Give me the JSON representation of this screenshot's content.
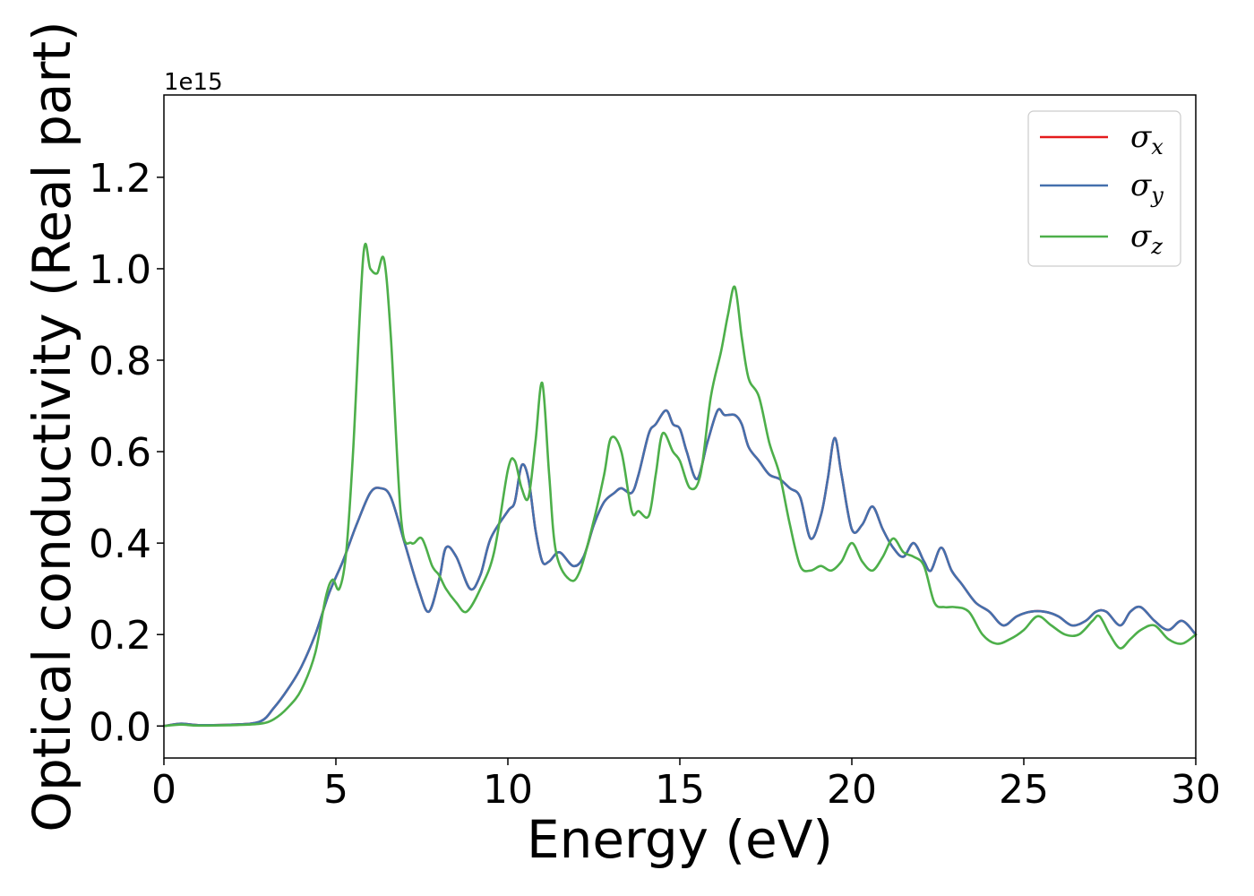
{
  "chart_data": {
    "type": "line",
    "title": "",
    "xlabel": "Energy (eV)",
    "ylabel": "Optical conductivity (Real part)",
    "y_offset_label": "1e15",
    "xlim": [
      0,
      30
    ],
    "ylim": [
      -0.07,
      1.38
    ],
    "x_ticks": [
      0,
      5,
      10,
      15,
      20,
      25,
      30
    ],
    "x_tick_labels": [
      "0",
      "5",
      "10",
      "15",
      "20",
      "25",
      "30"
    ],
    "y_ticks": [
      0.0,
      0.2,
      0.4,
      0.6,
      0.8,
      1.0,
      1.2
    ],
    "y_tick_labels": [
      "0.0",
      "0.2",
      "0.4",
      "0.6",
      "0.8",
      "1.0",
      "1.2"
    ],
    "grid": false,
    "legend_position": "top-right",
    "series": [
      {
        "name": "σx",
        "symbol": "σ",
        "subscript": "x",
        "color": "#e41a1c",
        "x": [
          0,
          0.5,
          1,
          2,
          2.8,
          3.2,
          3.6,
          4,
          4.4,
          4.8,
          5.2,
          5.6,
          6,
          6.3,
          6.6,
          7,
          7.4,
          7.7,
          8,
          8.2,
          8.5,
          8.9,
          9.2,
          9.5,
          10,
          10.2,
          10.4,
          10.6,
          10.8,
          11,
          11.2,
          11.5,
          11.9,
          12.2,
          12.5,
          12.8,
          13.1,
          13.3,
          13.6,
          13.8,
          14.1,
          14.3,
          14.6,
          14.8,
          15,
          15.2,
          15.5,
          15.8,
          16.1,
          16.3,
          16.6,
          16.8,
          17,
          17.3,
          17.6,
          17.9,
          18.2,
          18.5,
          18.8,
          19.1,
          19.3,
          19.5,
          19.7,
          20,
          20.3,
          20.6,
          20.9,
          21.2,
          21.5,
          21.8,
          22.1,
          22.3,
          22.6,
          22.9,
          23.2,
          23.6,
          24,
          24.4,
          24.8,
          25.2,
          25.6,
          26,
          26.4,
          26.8,
          27.1,
          27.4,
          27.8,
          28.1,
          28.4,
          28.8,
          29.2,
          29.6,
          30
        ],
        "y": [
          0,
          0.005,
          0.002,
          0.003,
          0.01,
          0.04,
          0.08,
          0.13,
          0.2,
          0.29,
          0.36,
          0.44,
          0.51,
          0.52,
          0.5,
          0.4,
          0.3,
          0.25,
          0.32,
          0.39,
          0.37,
          0.3,
          0.33,
          0.41,
          0.47,
          0.49,
          0.57,
          0.54,
          0.43,
          0.36,
          0.36,
          0.38,
          0.35,
          0.37,
          0.44,
          0.49,
          0.51,
          0.52,
          0.51,
          0.55,
          0.64,
          0.66,
          0.69,
          0.66,
          0.65,
          0.6,
          0.54,
          0.62,
          0.69,
          0.68,
          0.68,
          0.66,
          0.61,
          0.58,
          0.55,
          0.54,
          0.52,
          0.5,
          0.41,
          0.46,
          0.54,
          0.63,
          0.55,
          0.43,
          0.44,
          0.48,
          0.43,
          0.39,
          0.37,
          0.4,
          0.36,
          0.34,
          0.39,
          0.34,
          0.31,
          0.27,
          0.25,
          0.22,
          0.24,
          0.25,
          0.25,
          0.24,
          0.22,
          0.23,
          0.25,
          0.25,
          0.22,
          0.25,
          0.26,
          0.23,
          0.21,
          0.23,
          0.2
        ]
      },
      {
        "name": "σy",
        "symbol": "σ",
        "subscript": "y",
        "color": "#4470ad",
        "x": [
          0,
          0.5,
          1,
          2,
          2.8,
          3.2,
          3.6,
          4,
          4.4,
          4.8,
          5.2,
          5.6,
          6,
          6.3,
          6.6,
          7,
          7.4,
          7.7,
          8,
          8.2,
          8.5,
          8.9,
          9.2,
          9.5,
          10,
          10.2,
          10.4,
          10.6,
          10.8,
          11,
          11.2,
          11.5,
          11.9,
          12.2,
          12.5,
          12.8,
          13.1,
          13.3,
          13.6,
          13.8,
          14.1,
          14.3,
          14.6,
          14.8,
          15,
          15.2,
          15.5,
          15.8,
          16.1,
          16.3,
          16.6,
          16.8,
          17,
          17.3,
          17.6,
          17.9,
          18.2,
          18.5,
          18.8,
          19.1,
          19.3,
          19.5,
          19.7,
          20,
          20.3,
          20.6,
          20.9,
          21.2,
          21.5,
          21.8,
          22.1,
          22.3,
          22.6,
          22.9,
          23.2,
          23.6,
          24,
          24.4,
          24.8,
          25.2,
          25.6,
          26,
          26.4,
          26.8,
          27.1,
          27.4,
          27.8,
          28.1,
          28.4,
          28.8,
          29.2,
          29.6,
          30
        ],
        "y": [
          0,
          0.005,
          0.002,
          0.003,
          0.01,
          0.04,
          0.08,
          0.13,
          0.2,
          0.29,
          0.36,
          0.44,
          0.51,
          0.52,
          0.5,
          0.4,
          0.3,
          0.25,
          0.32,
          0.39,
          0.37,
          0.3,
          0.33,
          0.41,
          0.47,
          0.49,
          0.57,
          0.54,
          0.43,
          0.36,
          0.36,
          0.38,
          0.35,
          0.37,
          0.44,
          0.49,
          0.51,
          0.52,
          0.51,
          0.55,
          0.64,
          0.66,
          0.69,
          0.66,
          0.65,
          0.6,
          0.54,
          0.62,
          0.69,
          0.68,
          0.68,
          0.66,
          0.61,
          0.58,
          0.55,
          0.54,
          0.52,
          0.5,
          0.41,
          0.46,
          0.54,
          0.63,
          0.55,
          0.43,
          0.44,
          0.48,
          0.43,
          0.39,
          0.37,
          0.4,
          0.36,
          0.34,
          0.39,
          0.34,
          0.31,
          0.27,
          0.25,
          0.22,
          0.24,
          0.25,
          0.25,
          0.24,
          0.22,
          0.23,
          0.25,
          0.25,
          0.22,
          0.25,
          0.26,
          0.23,
          0.21,
          0.23,
          0.2
        ]
      },
      {
        "name": "σz",
        "symbol": "σ",
        "subscript": "z",
        "color": "#4daf4a",
        "x": [
          0,
          0.5,
          1,
          2,
          2.8,
          3.2,
          3.6,
          4,
          4.4,
          4.7,
          4.9,
          5.1,
          5.3,
          5.5,
          5.8,
          6,
          6.2,
          6.4,
          6.6,
          6.9,
          7.2,
          7.5,
          7.8,
          8,
          8.2,
          8.5,
          8.8,
          9.2,
          9.6,
          10,
          10.2,
          10.4,
          10.6,
          10.8,
          11,
          11.2,
          11.4,
          11.8,
          12.1,
          12.5,
          12.8,
          13,
          13.3,
          13.6,
          13.8,
          14.1,
          14.3,
          14.5,
          14.8,
          15,
          15.3,
          15.6,
          15.9,
          16.2,
          16.4,
          16.6,
          16.8,
          17,
          17.3,
          17.6,
          17.9,
          18.2,
          18.5,
          18.8,
          19.1,
          19.4,
          19.7,
          20,
          20.3,
          20.6,
          20.9,
          21.2,
          21.5,
          21.8,
          22.1,
          22.4,
          22.7,
          23,
          23.4,
          23.8,
          24.2,
          24.6,
          25,
          25.4,
          25.8,
          26.2,
          26.6,
          27,
          27.2,
          27.5,
          27.8,
          28.1,
          28.4,
          28.8,
          29.2,
          29.6,
          30
        ],
        "y": [
          0,
          0.003,
          0.001,
          0.002,
          0.005,
          0.015,
          0.04,
          0.08,
          0.16,
          0.28,
          0.32,
          0.3,
          0.38,
          0.6,
          1.03,
          1.0,
          0.99,
          1.02,
          0.85,
          0.45,
          0.4,
          0.41,
          0.35,
          0.33,
          0.3,
          0.27,
          0.25,
          0.3,
          0.38,
          0.56,
          0.58,
          0.52,
          0.5,
          0.62,
          0.75,
          0.55,
          0.38,
          0.32,
          0.34,
          0.45,
          0.55,
          0.63,
          0.6,
          0.47,
          0.47,
          0.46,
          0.55,
          0.64,
          0.6,
          0.58,
          0.52,
          0.55,
          0.72,
          0.82,
          0.9,
          0.96,
          0.85,
          0.76,
          0.72,
          0.62,
          0.55,
          0.44,
          0.35,
          0.34,
          0.35,
          0.34,
          0.36,
          0.4,
          0.36,
          0.34,
          0.37,
          0.41,
          0.38,
          0.37,
          0.35,
          0.27,
          0.26,
          0.26,
          0.25,
          0.2,
          0.18,
          0.19,
          0.21,
          0.24,
          0.22,
          0.2,
          0.2,
          0.23,
          0.24,
          0.2,
          0.17,
          0.19,
          0.21,
          0.22,
          0.19,
          0.18,
          0.2
        ]
      }
    ]
  }
}
